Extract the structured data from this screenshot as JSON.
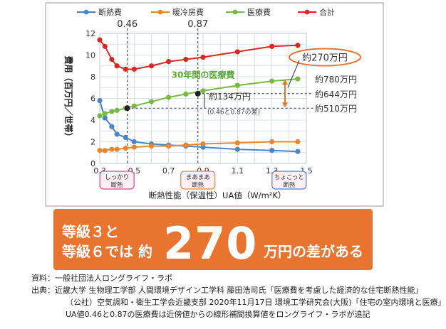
{
  "chart_data": {
    "type": "line",
    "legend": [
      "断熱費",
      "暖冷房費",
      "医療費",
      "合計"
    ],
    "ylabel": "費用（百万円／世帯）",
    "xlabel": "断熱性能（保温性）UA値（W/m²K）",
    "xlim": [
      0.3,
      1.5
    ],
    "ylim": [
      0,
      12
    ],
    "xticks": [
      "0.3",
      "0.5",
      "0.7",
      "0.9",
      "1.1",
      "1.3",
      "1.5"
    ],
    "yticks": [
      "0",
      "2",
      "4",
      "6",
      "8",
      "10",
      "12"
    ],
    "grid": true,
    "colors": [
      "#4a86c5",
      "#e8872e",
      "#78b944",
      "#d62a23"
    ],
    "series": [
      {
        "name": "断熱費",
        "color": "#4a86c5",
        "x": [
          0.3,
          0.33,
          0.37,
          0.4,
          0.45,
          0.5,
          0.6,
          0.7,
          0.8,
          0.9,
          1.1,
          1.3,
          1.45
        ],
        "y": [
          5.8,
          4.2,
          3.4,
          2.7,
          2.4,
          2.0,
          1.8,
          1.7,
          1.6,
          1.5,
          1.3,
          1.2,
          1.1
        ]
      },
      {
        "name": "暖冷房費",
        "color": "#e8872e",
        "x": [
          0.3,
          0.33,
          0.37,
          0.4,
          0.45,
          0.5,
          0.6,
          0.7,
          0.8,
          0.9,
          1.1,
          1.3,
          1.45
        ],
        "y": [
          1.2,
          1.2,
          1.3,
          1.3,
          1.4,
          1.5,
          1.6,
          1.6,
          1.7,
          1.8,
          1.9,
          2.0,
          2.0
        ]
      },
      {
        "name": "医療費",
        "color": "#78b944",
        "x": [
          0.3,
          0.33,
          0.37,
          0.4,
          0.45,
          0.5,
          0.6,
          0.7,
          0.8,
          0.9,
          1.1,
          1.3,
          1.45
        ],
        "y": [
          4.4,
          4.6,
          4.8,
          4.9,
          5.1,
          5.3,
          5.7,
          6.1,
          6.4,
          6.7,
          7.2,
          7.6,
          7.8
        ]
      },
      {
        "name": "合計",
        "color": "#d62a23",
        "x": [
          0.3,
          0.33,
          0.37,
          0.4,
          0.45,
          0.5,
          0.6,
          0.7,
          0.8,
          0.9,
          1.1,
          1.3,
          1.45
        ],
        "y": [
          11.4,
          10.8,
          9.6,
          9.0,
          8.7,
          8.7,
          9.0,
          9.4,
          9.6,
          9.8,
          10.3,
          10.8,
          10.9
        ]
      }
    ],
    "markers": [
      {
        "x": 0.46,
        "y": 5.1,
        "label": "0.46"
      },
      {
        "x": 0.87,
        "y": 6.44,
        "label": "0.87"
      }
    ],
    "annotations": {
      "green_series_label": "30年間の医療費",
      "diff_total": "約270万円",
      "right_780": "約780万円",
      "right_644": "約644万円",
      "right_510": "約510万円",
      "diff_134": "約134万円",
      "diff_note": "(0.46と0.87の差)"
    },
    "categories_badges": [
      {
        "text1": "しっかり",
        "text2": "断熱",
        "x": 0.4,
        "color": "#d84a8a"
      },
      {
        "text1": "まあまあ",
        "text2": "断熱",
        "x": 0.87,
        "color": "#e8872e"
      },
      {
        "text1": "ちょこっと",
        "text2": "断熱",
        "x": 1.4,
        "color": "#4a86c5"
      }
    ]
  },
  "callout": {
    "line1": "等級３と",
    "line2": "等級６では 約",
    "big": "270",
    "line3": "万円の差がある"
  },
  "notes": [
    "資料：一般社団法人ロングライフ・ラボ",
    "出典：近畿大学 生物理工学部 人間環境デザイン工学科 藤田浩司氏「医療費を考慮した経済的な住宅断熱性能」",
    "（公社）空気調和・衛生工学会近畿支部 2020年11月17日 環境工学研究会(大阪)「住宅の室内環境と医療」",
    "UA値0.46と0.87の医療費は近傍値からの線形補間換算値をロングライフ・ラボが追記"
  ]
}
